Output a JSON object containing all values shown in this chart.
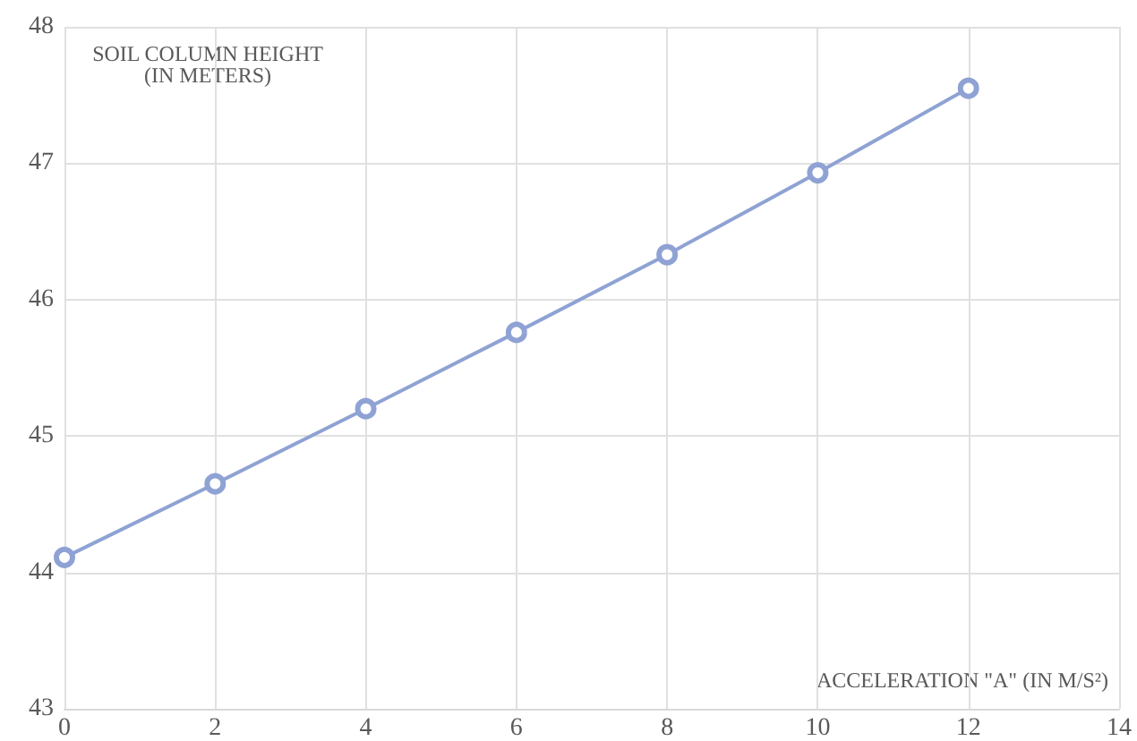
{
  "chart_data": {
    "type": "line",
    "xlabel": "ACCELERATION \"A\" (IN M/S²)",
    "ylabel": "SOIL COLUMN HEIGHT\n(IN METERS)",
    "x": [
      0,
      2,
      4,
      6,
      8,
      10,
      12
    ],
    "series": [
      {
        "color": "#8fa2d4",
        "values": [
          44.11,
          44.65,
          45.2,
          45.76,
          46.33,
          46.93,
          47.55
        ]
      }
    ],
    "xlim": [
      0,
      14
    ],
    "xticks": [
      0,
      2,
      4,
      6,
      8,
      10,
      12,
      14
    ],
    "ylim": [
      43,
      48
    ],
    "yticks": [
      43,
      44,
      45,
      46,
      47,
      48
    ],
    "grid": true,
    "marker": "circle",
    "line_style": "solid"
  }
}
